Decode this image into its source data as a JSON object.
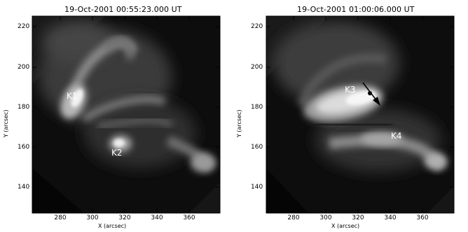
{
  "left_panel": {
    "title": "19-Oct-2001  00:55:23.000  UT",
    "xlabel": "X (arcsec)",
    "ylabel": "Y (arcsec)",
    "x_ticks": [
      "280",
      "300",
      "320",
      "340",
      "360"
    ],
    "y_ticks": [
      "220",
      "200",
      "180",
      "160",
      "140"
    ],
    "labels": [
      "K1",
      "K2"
    ]
  },
  "right_panel": {
    "title": "19-Oct-2001  01:00:06.000  UT",
    "xlabel": "X (arcsec)",
    "ylabel": "Y (arcsec)",
    "x_ticks": [
      "280",
      "300",
      "320",
      "340",
      "360"
    ],
    "y_ticks": [
      "220",
      "200",
      "180",
      "160",
      "140"
    ],
    "labels": [
      "K3",
      "K4"
    ]
  }
}
